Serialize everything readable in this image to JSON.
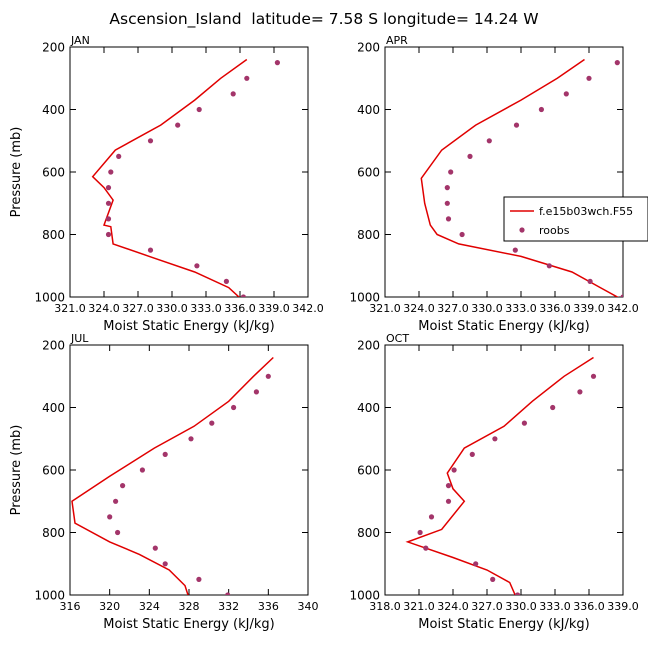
{
  "figure": {
    "title": "Ascension_Island  latitude= 7.58 S longitude= 14.24 W"
  },
  "legend": {
    "model_label": "f.e15b03wch.F55",
    "obs_label": "roobs"
  },
  "colors": {
    "model": "#e00000",
    "obs": "#a3356a",
    "axis": "#000000"
  },
  "chart_data": [
    {
      "type": "line",
      "panel": "JAN",
      "xlabel": "Moist Static Energy (kJ/kg)",
      "ylabel": "Pressure (mb)",
      "xlim": [
        321.0,
        342.0
      ],
      "ylim": [
        1000,
        200
      ],
      "xticks": [
        321.0,
        324.0,
        327.0,
        330.0,
        333.0,
        336.0,
        339.0,
        342.0
      ],
      "xtick_labels": [
        "321.0",
        "324.0",
        "327.0",
        "330.0",
        "333.0",
        "336.0",
        "339.0",
        "342.0"
      ],
      "yticks": [
        200,
        400,
        600,
        800,
        1000
      ],
      "show_legend": false,
      "series": [
        {
          "name": "f.e15b03wch.F55",
          "kind": "line",
          "points": [
            [
              336.2,
              1010
            ],
            [
              335.0,
              970
            ],
            [
              332.0,
              920
            ],
            [
              328.0,
              870
            ],
            [
              324.8,
              830
            ],
            [
              324.6,
              775
            ],
            [
              324.0,
              770
            ],
            [
              324.8,
              690
            ],
            [
              324.0,
              650
            ],
            [
              323.0,
              615
            ],
            [
              325.0,
              530
            ],
            [
              329.0,
              450
            ],
            [
              332.0,
              370
            ],
            [
              334.3,
              300
            ],
            [
              336.6,
              240
            ]
          ]
        },
        {
          "name": "roobs",
          "kind": "scatter",
          "points": [
            [
              339.3,
              250
            ],
            [
              336.6,
              300
            ],
            [
              335.4,
              350
            ],
            [
              332.4,
              400
            ],
            [
              330.5,
              450
            ],
            [
              328.1,
              500
            ],
            [
              325.3,
              550
            ],
            [
              324.6,
              600
            ],
            [
              324.4,
              650
            ],
            [
              324.4,
              700
            ],
            [
              324.4,
              750
            ],
            [
              324.4,
              800
            ],
            [
              328.1,
              850
            ],
            [
              332.2,
              900
            ],
            [
              334.8,
              950
            ],
            [
              336.3,
              1000
            ]
          ]
        }
      ]
    },
    {
      "type": "line",
      "panel": "APR",
      "xlabel": "Moist Static Energy (kJ/kg)",
      "ylabel": "",
      "xlim": [
        321.0,
        342.0
      ],
      "ylim": [
        1000,
        200
      ],
      "xticks": [
        321.0,
        324.0,
        327.0,
        330.0,
        333.0,
        336.0,
        339.0,
        342.0
      ],
      "xtick_labels": [
        "321.0",
        "324.0",
        "327.0",
        "330.0",
        "333.0",
        "336.0",
        "339.0",
        "342.0"
      ],
      "yticks": [
        200,
        400,
        600,
        800,
        1000
      ],
      "show_legend": true,
      "series": [
        {
          "name": "f.e15b03wch.F55",
          "kind": "line",
          "points": [
            [
              342.0,
              1010
            ],
            [
              340.0,
              970
            ],
            [
              337.5,
              920
            ],
            [
              333.0,
              870
            ],
            [
              327.5,
              830
            ],
            [
              325.6,
              800
            ],
            [
              325.0,
              770
            ],
            [
              324.5,
              700
            ],
            [
              324.2,
              620
            ],
            [
              326.0,
              530
            ],
            [
              329.0,
              450
            ],
            [
              333.0,
              370
            ],
            [
              336.2,
              300
            ],
            [
              338.6,
              240
            ]
          ]
        },
        {
          "name": "roobs",
          "kind": "scatter",
          "points": [
            [
              341.5,
              250
            ],
            [
              339.0,
              300
            ],
            [
              337.0,
              350
            ],
            [
              334.8,
              400
            ],
            [
              332.6,
              450
            ],
            [
              330.2,
              500
            ],
            [
              328.5,
              550
            ],
            [
              326.8,
              600
            ],
            [
              326.5,
              650
            ],
            [
              326.5,
              700
            ],
            [
              326.6,
              750
            ],
            [
              327.8,
              800
            ],
            [
              332.5,
              850
            ],
            [
              335.5,
              900
            ],
            [
              339.1,
              950
            ],
            [
              342.0,
              1000
            ]
          ]
        }
      ]
    },
    {
      "type": "line",
      "panel": "JUL",
      "xlabel": "Moist Static Energy (kJ/kg)",
      "ylabel": "Pressure (mb)",
      "xlim": [
        316,
        340
      ],
      "ylim": [
        1000,
        200
      ],
      "xticks": [
        316,
        320,
        324,
        328,
        332,
        336,
        340
      ],
      "xtick_labels": [
        "316",
        "320",
        "324",
        "328",
        "332",
        "336",
        "340"
      ],
      "yticks": [
        200,
        400,
        600,
        800,
        1000
      ],
      "show_legend": false,
      "series": [
        {
          "name": "f.e15b03wch.F55",
          "kind": "line",
          "points": [
            [
              328.0,
              1010
            ],
            [
              327.6,
              970
            ],
            [
              326.0,
              920
            ],
            [
              323.0,
              870
            ],
            [
              320.0,
              830
            ],
            [
              316.5,
              770
            ],
            [
              316.2,
              700
            ],
            [
              320.0,
              620
            ],
            [
              324.5,
              530
            ],
            [
              328.5,
              460
            ],
            [
              332.0,
              380
            ],
            [
              334.5,
              300
            ],
            [
              336.5,
              240
            ]
          ]
        },
        {
          "name": "roobs",
          "kind": "scatter",
          "points": [
            [
              336.0,
              300
            ],
            [
              334.8,
              350
            ],
            [
              332.5,
              400
            ],
            [
              330.3,
              450
            ],
            [
              328.2,
              500
            ],
            [
              325.6,
              550
            ],
            [
              323.3,
              600
            ],
            [
              321.3,
              650
            ],
            [
              320.6,
              700
            ],
            [
              320.0,
              750
            ],
            [
              320.8,
              800
            ],
            [
              324.6,
              850
            ],
            [
              325.6,
              900
            ],
            [
              329.0,
              950
            ],
            [
              331.9,
              1000
            ]
          ]
        }
      ]
    },
    {
      "type": "line",
      "panel": "OCT",
      "xlabel": "Moist Static Energy (kJ/kg)",
      "ylabel": "",
      "xlim": [
        318.0,
        339.0
      ],
      "ylim": [
        1000,
        200
      ],
      "xticks": [
        318.0,
        321.0,
        324.0,
        327.0,
        330.0,
        333.0,
        336.0,
        339.0
      ],
      "xtick_labels": [
        "318.0",
        "321.0",
        "324.0",
        "327.0",
        "330.0",
        "333.0",
        "336.0",
        "339.0"
      ],
      "yticks": [
        200,
        400,
        600,
        800,
        1000
      ],
      "show_legend": false,
      "series": [
        {
          "name": "f.e15b03wch.F55",
          "kind": "line",
          "points": [
            [
              329.6,
              1010
            ],
            [
              329.0,
              960
            ],
            [
              327.0,
              920
            ],
            [
              324.0,
              880
            ],
            [
              320.0,
              830
            ],
            [
              323.0,
              790
            ],
            [
              325.0,
              700
            ],
            [
              324.0,
              660
            ],
            [
              323.5,
              610
            ],
            [
              325.0,
              530
            ],
            [
              328.5,
              460
            ],
            [
              331.0,
              380
            ],
            [
              333.8,
              300
            ],
            [
              336.4,
              240
            ]
          ]
        },
        {
          "name": "roobs",
          "kind": "scatter",
          "points": [
            [
              336.4,
              300
            ],
            [
              335.2,
              350
            ],
            [
              332.8,
              400
            ],
            [
              330.3,
              450
            ],
            [
              327.7,
              500
            ],
            [
              325.7,
              550
            ],
            [
              324.1,
              600
            ],
            [
              323.6,
              650
            ],
            [
              323.6,
              700
            ],
            [
              322.1,
              750
            ],
            [
              321.1,
              800
            ],
            [
              321.6,
              850
            ],
            [
              326.0,
              900
            ],
            [
              327.5,
              950
            ],
            [
              329.7,
              1000
            ]
          ]
        }
      ]
    }
  ]
}
